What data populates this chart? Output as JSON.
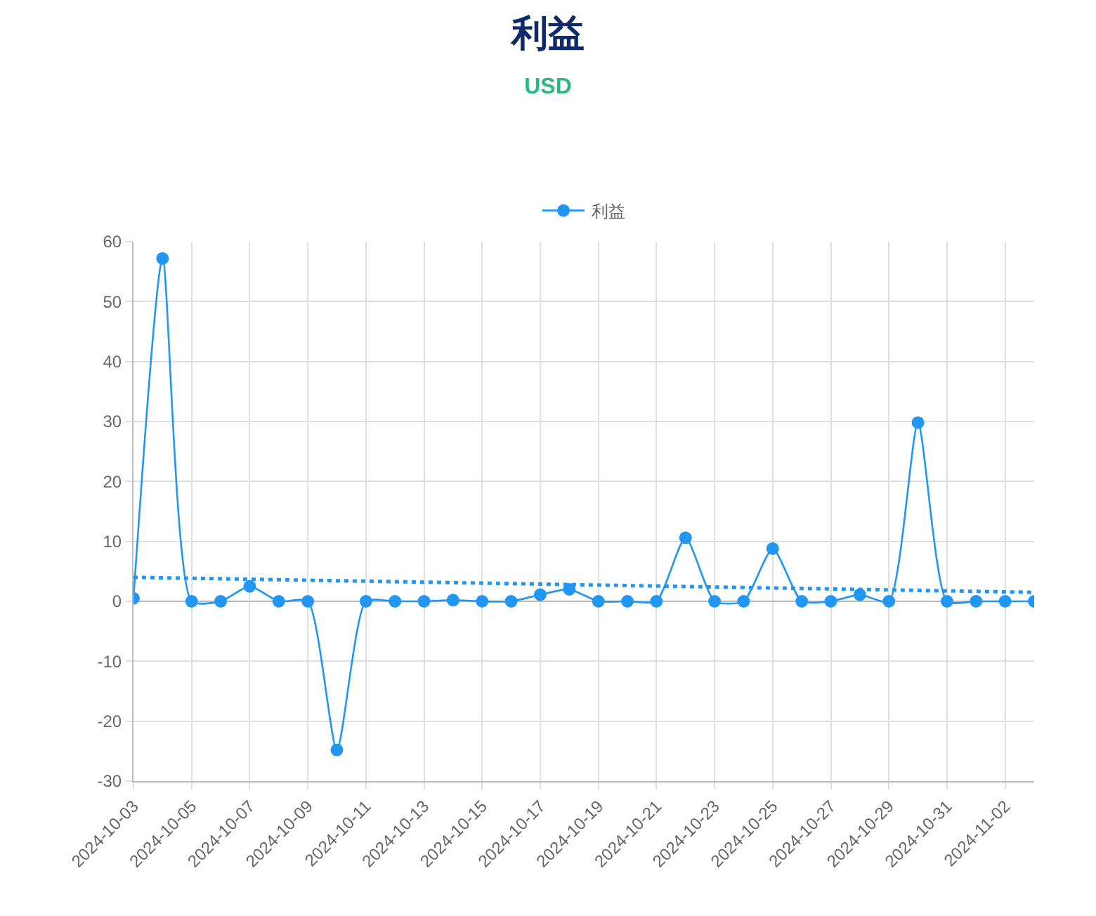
{
  "chart_data": {
    "type": "line",
    "title": "利益",
    "subtitle": "USD",
    "x": [
      "2024-10-03",
      "2024-10-04",
      "2024-10-05",
      "2024-10-06",
      "2024-10-07",
      "2024-10-08",
      "2024-10-09",
      "2024-10-10",
      "2024-10-11",
      "2024-10-12",
      "2024-10-13",
      "2024-10-14",
      "2024-10-15",
      "2024-10-16",
      "2024-10-17",
      "2024-10-18",
      "2024-10-19",
      "2024-10-20",
      "2024-10-21",
      "2024-10-22",
      "2024-10-23",
      "2024-10-24",
      "2024-10-25",
      "2024-10-26",
      "2024-10-27",
      "2024-10-28",
      "2024-10-29",
      "2024-10-30",
      "2024-10-31",
      "2024-11-01",
      "2024-11-02",
      "2024-11-03"
    ],
    "series": [
      {
        "name": "利益",
        "color": "#2196f3",
        "values": [
          0.5,
          57.2,
          0,
          0,
          2.5,
          0,
          0,
          -24.8,
          0,
          0,
          0,
          0.2,
          0,
          0,
          1.1,
          2.0,
          0,
          0,
          0,
          10.6,
          0,
          0,
          8.8,
          0,
          0,
          1.1,
          0,
          29.8,
          0,
          0,
          0,
          0
        ]
      },
      {
        "type": "line",
        "color": "#2196f3",
        "line_style": "dotted",
        "marker": "none",
        "x": [
          "2024-10-03",
          "2024-11-03"
        ],
        "values": [
          4.0,
          1.5
        ]
      }
    ],
    "xlim": [
      "2024-10-03",
      "2024-11-03"
    ],
    "xticks": [
      "2024-10-03",
      "2024-10-05",
      "2024-10-07",
      "2024-10-09",
      "2024-10-11",
      "2024-10-13",
      "2024-10-15",
      "2024-10-17",
      "2024-10-19",
      "2024-10-21",
      "2024-10-23",
      "2024-10-25",
      "2024-10-27",
      "2024-10-29",
      "2024-10-31",
      "2024-11-02"
    ],
    "ylim": [
      -30,
      60
    ],
    "yticks": [
      -30,
      -20,
      -10,
      0,
      10,
      20,
      30,
      40,
      50,
      60
    ],
    "grid": true,
    "legend": "top",
    "marker": "circle",
    "line_style": "solid"
  }
}
